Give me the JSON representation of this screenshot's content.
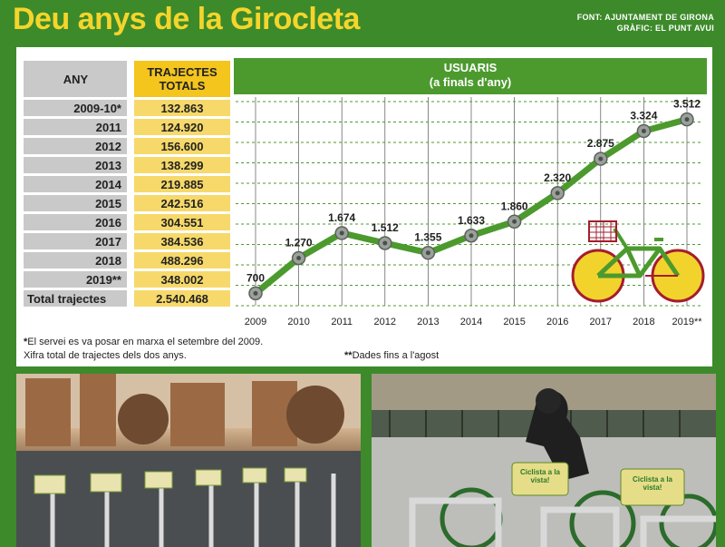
{
  "header": {
    "title": "Deu anys de la Girocleta",
    "source": "FONT: AJUNTAMENT DE GIRONA",
    "graphic": "GRÀFIC: EL PUNT AVUI"
  },
  "table": {
    "col_year": "ANY",
    "col_trips_1": "TRAJECTES",
    "col_trips_2": "TOTALS",
    "rows": [
      {
        "year": "2009-10*",
        "trips": "132.863"
      },
      {
        "year": "2011",
        "trips": "124.920"
      },
      {
        "year": "2012",
        "trips": "156.600"
      },
      {
        "year": "2013",
        "trips": "138.299"
      },
      {
        "year": "2014",
        "trips": "219.885"
      },
      {
        "year": "2015",
        "trips": "242.516"
      },
      {
        "year": "2016",
        "trips": "304.551"
      },
      {
        "year": "2017",
        "trips": "384.536"
      },
      {
        "year": "2018",
        "trips": "488.296"
      },
      {
        "year": "2019**",
        "trips": "348.002"
      }
    ],
    "total_label": "Total trajectes",
    "total_value": "2.540.468"
  },
  "chart_data": {
    "type": "line",
    "title": "USUARIS",
    "subtitle": "(a finals d'any)",
    "categories": [
      "2009",
      "2010",
      "2011",
      "2012",
      "2013",
      "2014",
      "2015",
      "2016",
      "2017",
      "2018",
      "2019**"
    ],
    "values": [
      700,
      1270,
      1674,
      1512,
      1355,
      1633,
      1860,
      2320,
      2875,
      3324,
      3512
    ],
    "value_labels": [
      "700",
      "1.270",
      "1.674",
      "1.512",
      "1.355",
      "1.633",
      "1.860",
      "2.320",
      "2.875",
      "3.324",
      "3.512"
    ],
    "ylim": [
      500,
      3800
    ],
    "grid": true,
    "colors": {
      "line": "#4c9a2e",
      "marker": "#9aa09a"
    }
  },
  "notes": {
    "n1_line1": "El servei es va posar en marxa el setembre del 2009.",
    "n1_mark": "*",
    "n1_line2": "Xifra total de trajectes dels dos anys.",
    "n2_mark": "**",
    "n2": "Dades fins a l'agost"
  },
  "photos": {
    "sign_text": "Ciclista a la vista!"
  }
}
